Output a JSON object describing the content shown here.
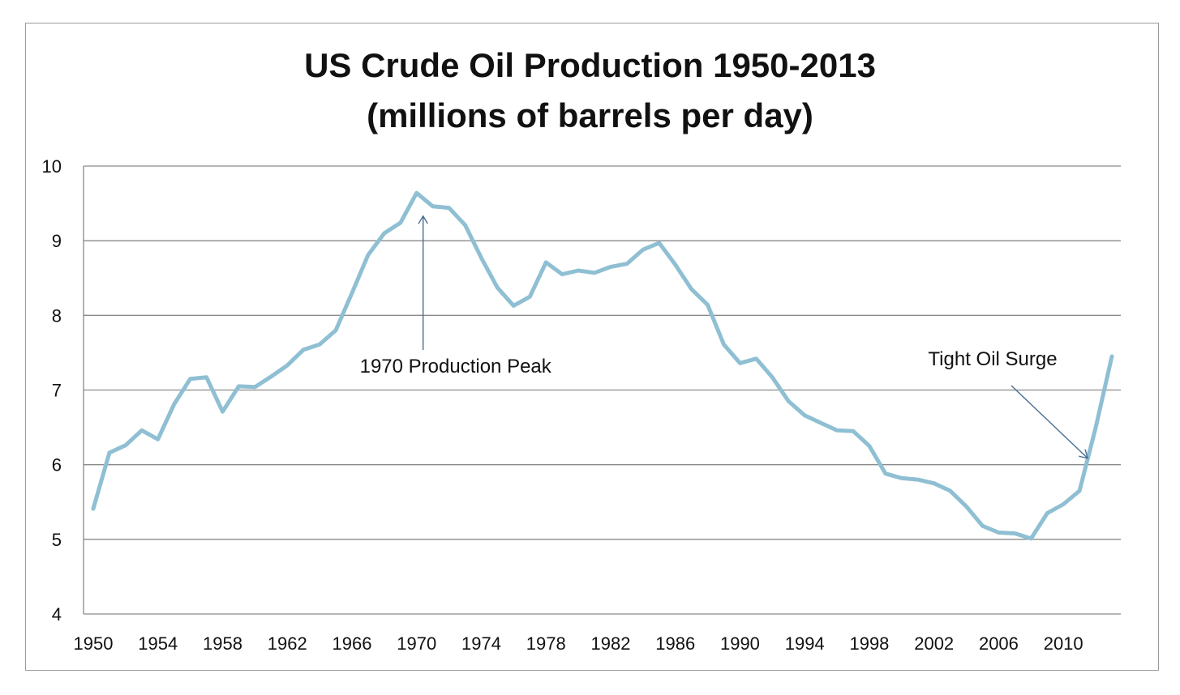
{
  "chart_data": {
    "type": "line",
    "title": "US Crude Oil Production 1950-2013",
    "subtitle": "(millions of barrels per day)",
    "xlabel": "",
    "ylabel": "",
    "ylim": [
      4,
      10
    ],
    "xlim": [
      1950,
      2013
    ],
    "y_ticks": [
      "4",
      "5",
      "6",
      "7",
      "8",
      "9",
      "10"
    ],
    "x_ticks": [
      "1950",
      "1954",
      "1958",
      "1962",
      "1966",
      "1970",
      "1974",
      "1978",
      "1982",
      "1986",
      "1990",
      "1994",
      "1998",
      "2002",
      "2006",
      "2010"
    ],
    "grid": "horizontal",
    "line_color": "#8fbfd3",
    "series": [
      {
        "x": [
          1950,
          1951,
          1952,
          1953,
          1954,
          1955,
          1956,
          1957,
          1958,
          1959,
          1960,
          1961,
          1962,
          1963,
          1964,
          1965,
          1966,
          1967,
          1968,
          1969,
          1970,
          1971,
          1972,
          1973,
          1974,
          1975,
          1976,
          1977,
          1978,
          1979,
          1980,
          1981,
          1982,
          1983,
          1984,
          1985,
          1986,
          1987,
          1988,
          1989,
          1990,
          1991,
          1992,
          1993,
          1994,
          1995,
          1996,
          1997,
          1998,
          1999,
          2000,
          2001,
          2002,
          2003,
          2004,
          2005,
          2006,
          2007,
          2008,
          2009,
          2010,
          2011,
          2012,
          2013
        ],
        "values": [
          5.41,
          6.16,
          6.26,
          6.46,
          6.34,
          6.81,
          7.15,
          7.17,
          6.71,
          7.05,
          7.04,
          7.18,
          7.33,
          7.54,
          7.61,
          7.8,
          8.3,
          8.81,
          9.1,
          9.24,
          9.64,
          9.46,
          9.44,
          9.21,
          8.77,
          8.37,
          8.13,
          8.25,
          8.71,
          8.55,
          8.6,
          8.57,
          8.65,
          8.69,
          8.88,
          8.97,
          8.68,
          8.35,
          8.14,
          7.61,
          7.36,
          7.42,
          7.17,
          6.85,
          6.66,
          6.56,
          6.46,
          6.45,
          6.25,
          5.88,
          5.82,
          5.8,
          5.75,
          5.65,
          5.44,
          5.18,
          5.09,
          5.08,
          5.01,
          5.35,
          5.47,
          5.65,
          6.5,
          7.45
        ]
      }
    ],
    "annotations": [
      {
        "text": "1970 Production Peak",
        "target_x": 1970.4,
        "target_y": 9.2
      },
      {
        "text": "Tight Oil Surge",
        "target_x": 2011.7,
        "target_y": 6.0
      }
    ]
  }
}
